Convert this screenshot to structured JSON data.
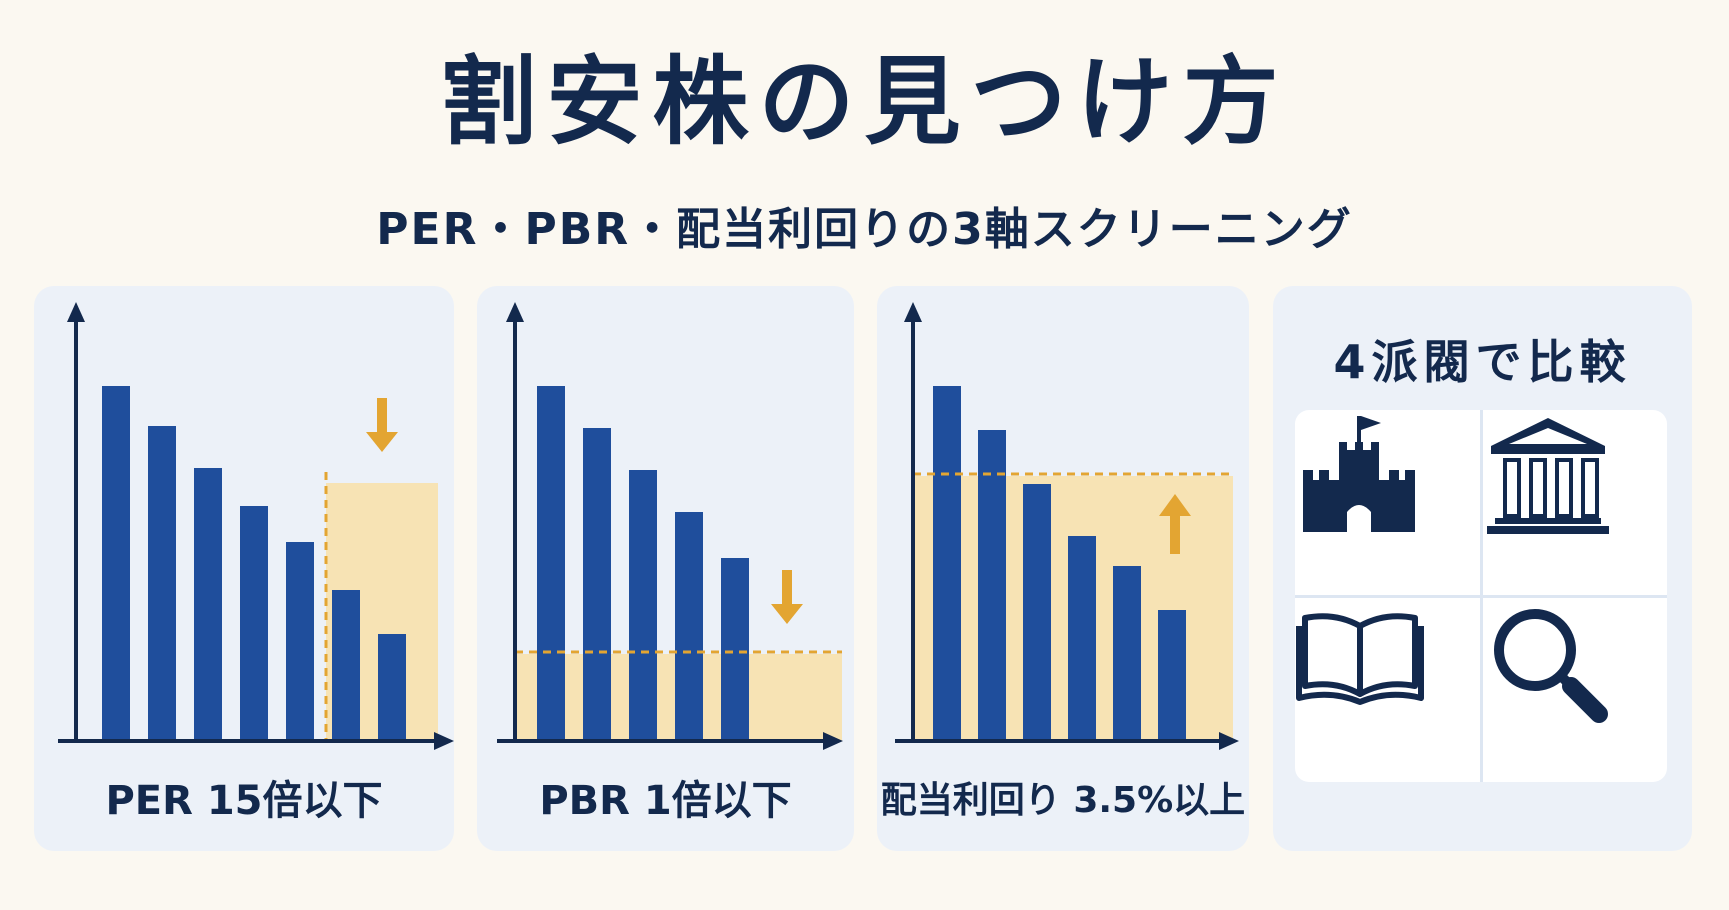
{
  "header": {
    "title": "割安株の見つけ方",
    "subtitle": "PER・PBR・配当利回りの3軸スクリーニング"
  },
  "colors": {
    "navy": "#13294d",
    "bar_blue": "#1f4e9c",
    "highlight": "#f7e3b4",
    "accent": "#e3a532",
    "panel_bg": "#ecf1f8"
  },
  "panels": [
    {
      "label": "PER 15倍以下",
      "arrow": "down-arrow-icon",
      "highlight": "right-columns"
    },
    {
      "label": "PBR 1倍以下",
      "arrow": "down-arrow-icon",
      "highlight": "below-line"
    },
    {
      "label": "配当利回り 3.5%以上",
      "arrow": "up-arrow-icon",
      "highlight": "below-line"
    }
  ],
  "comparison": {
    "title": "4派閥で比較",
    "icons": [
      "castle-icon",
      "bank-building-icon",
      "open-book-icon",
      "magnifier-icon"
    ]
  },
  "chart_data": [
    {
      "type": "bar",
      "values": [
        93,
        82,
        70,
        60,
        50,
        39,
        28
      ],
      "ylim": [
        0,
        100
      ],
      "highlight_range": {
        "from_index": 5,
        "to_index": 6
      }
    },
    {
      "type": "bar",
      "values": [
        93,
        82,
        70,
        59,
        47
      ],
      "ylim": [
        0,
        100
      ],
      "threshold": 24
    },
    {
      "type": "bar",
      "values": [
        93,
        84,
        69,
        55,
        47,
        35
      ],
      "ylim": [
        0,
        100
      ],
      "threshold": 71
    }
  ]
}
